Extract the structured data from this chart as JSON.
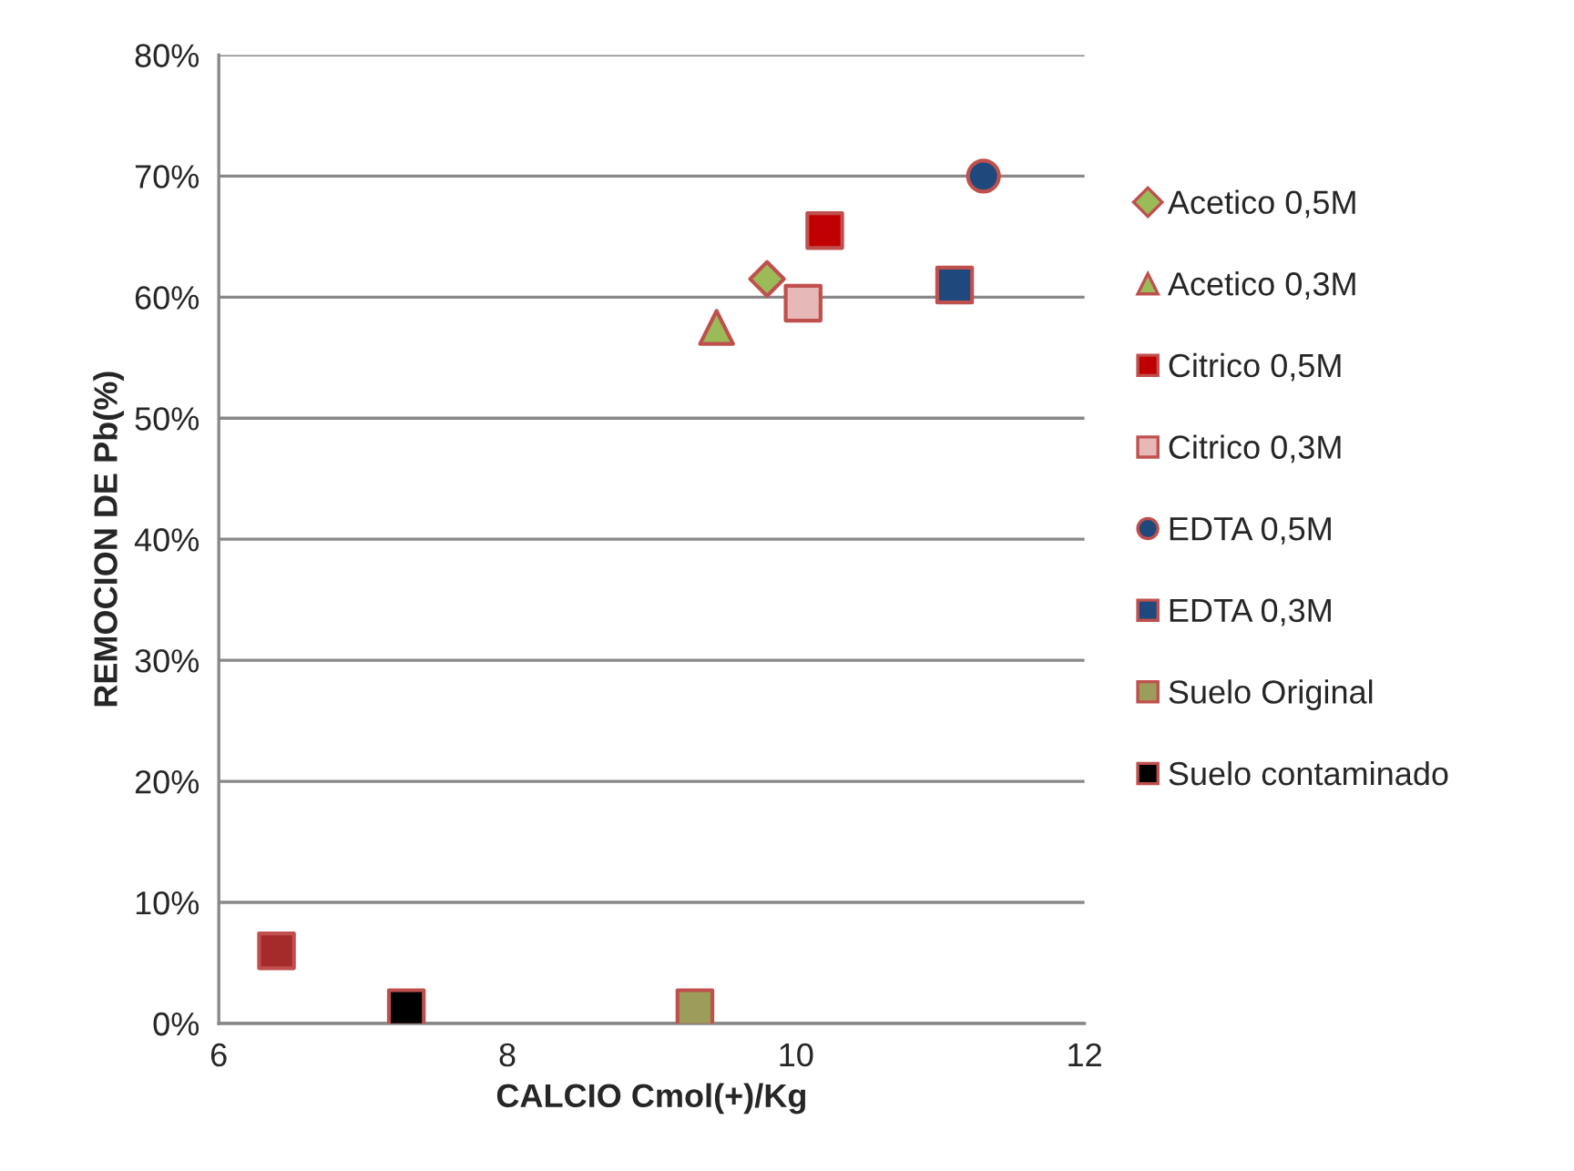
{
  "chart_data": {
    "type": "scatter",
    "xlabel": "CALCIO Cmol(+)/Kg",
    "ylabel": "REMOCION DE Pb(%)",
    "xlim": [
      6,
      12
    ],
    "xticks": [
      6,
      8,
      10,
      12
    ],
    "ylim": [
      0,
      80
    ],
    "yticks": [
      {
        "value": 0,
        "label": "0%"
      },
      {
        "value": 10,
        "label": "10%"
      },
      {
        "value": 20,
        "label": "20%"
      },
      {
        "value": 30,
        "label": "30%"
      },
      {
        "value": 40,
        "label": "40%"
      },
      {
        "value": 50,
        "label": "50%"
      },
      {
        "value": 60,
        "label": "60%"
      },
      {
        "value": 70,
        "label": "70%"
      },
      {
        "value": 80,
        "label": "80%"
      }
    ],
    "grid": "y",
    "legend": "right",
    "series": [
      {
        "name": "Acetico 0,5M",
        "marker": "diamond",
        "color": "#9bbb59",
        "x": [
          9.8
        ],
        "values": [
          61.5
        ]
      },
      {
        "name": "Acetico 0,3M",
        "marker": "triangle",
        "color": "#9bbb59",
        "x": [
          9.45
        ],
        "values": [
          57.5
        ]
      },
      {
        "name": "Citrico 0,5M",
        "marker": "square",
        "color": "#c00000",
        "x": [
          10.2
        ],
        "values": [
          65.5
        ]
      },
      {
        "name": "Citrico 0,3M",
        "marker": "square",
        "color": "#e6b9b8",
        "x": [
          10.05
        ],
        "values": [
          59.5
        ]
      },
      {
        "name": "EDTA 0,5M",
        "marker": "circle",
        "color": "#1f497d",
        "x": [
          11.3
        ],
        "values": [
          70
        ]
      },
      {
        "name": "EDTA 0,3M",
        "marker": "square",
        "color": "#1f497d",
        "x": [
          11.1
        ],
        "values": [
          61
        ]
      },
      {
        "name": "Suelo Original",
        "marker": "square",
        "color": "#9c9d5a",
        "x": [
          9.3
        ],
        "values": [
          1.3
        ]
      },
      {
        "name": "Suelo contaminado",
        "marker": "square",
        "color": "#000000",
        "x": [
          7.3
        ],
        "values": [
          1.3
        ]
      },
      {
        "marker": "square",
        "color": "#a52a2a",
        "x": [
          6.4
        ],
        "values": [
          6
        ]
      }
    ]
  }
}
